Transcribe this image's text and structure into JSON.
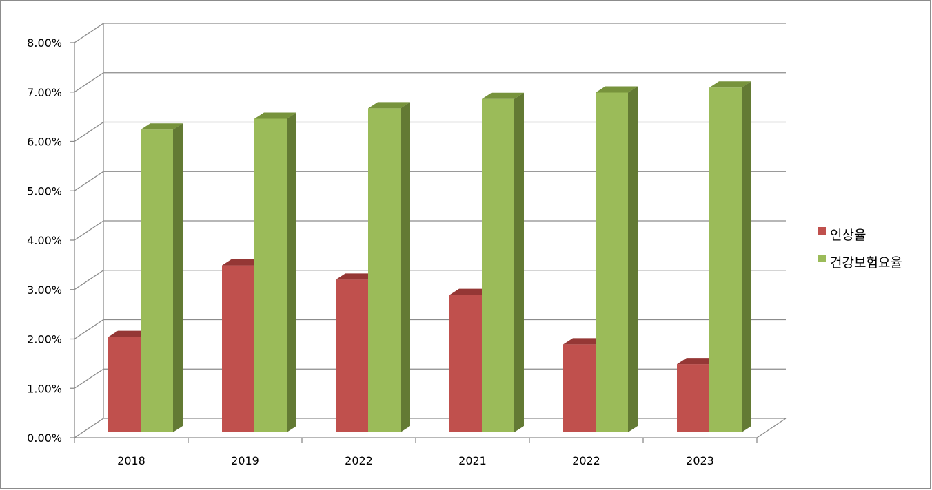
{
  "chart_data": {
    "type": "bar",
    "style": "3d-clustered-column",
    "categories": [
      "2018",
      "2019",
      "2022",
      "2021",
      "2022",
      "2023"
    ],
    "series": [
      {
        "name": "인상율",
        "values": [
          0.0204,
          0.0349,
          0.032,
          0.0289,
          0.0189,
          0.0149
        ],
        "color": "#C0504D",
        "top_color": "#953735",
        "side_color": "#7F2B28"
      },
      {
        "name": "건강보험요율",
        "values": [
          0.0624,
          0.0646,
          0.0667,
          0.0686,
          0.0699,
          0.0709
        ],
        "color": "#9BBB59",
        "top_color": "#77933C",
        "side_color": "#637A34"
      }
    ],
    "ylim": [
      0,
      0.08
    ],
    "yticks": [
      0,
      0.01,
      0.02,
      0.03,
      0.04,
      0.05,
      0.06,
      0.07,
      0.08
    ],
    "ytick_labels": [
      "0.00%",
      "1.00%",
      "2.00%",
      "3.00%",
      "4.00%",
      "5.00%",
      "6.00%",
      "7.00%",
      "8.00%"
    ],
    "grid": true,
    "grid_color": "#8C8C8C",
    "legend_position": "right"
  }
}
